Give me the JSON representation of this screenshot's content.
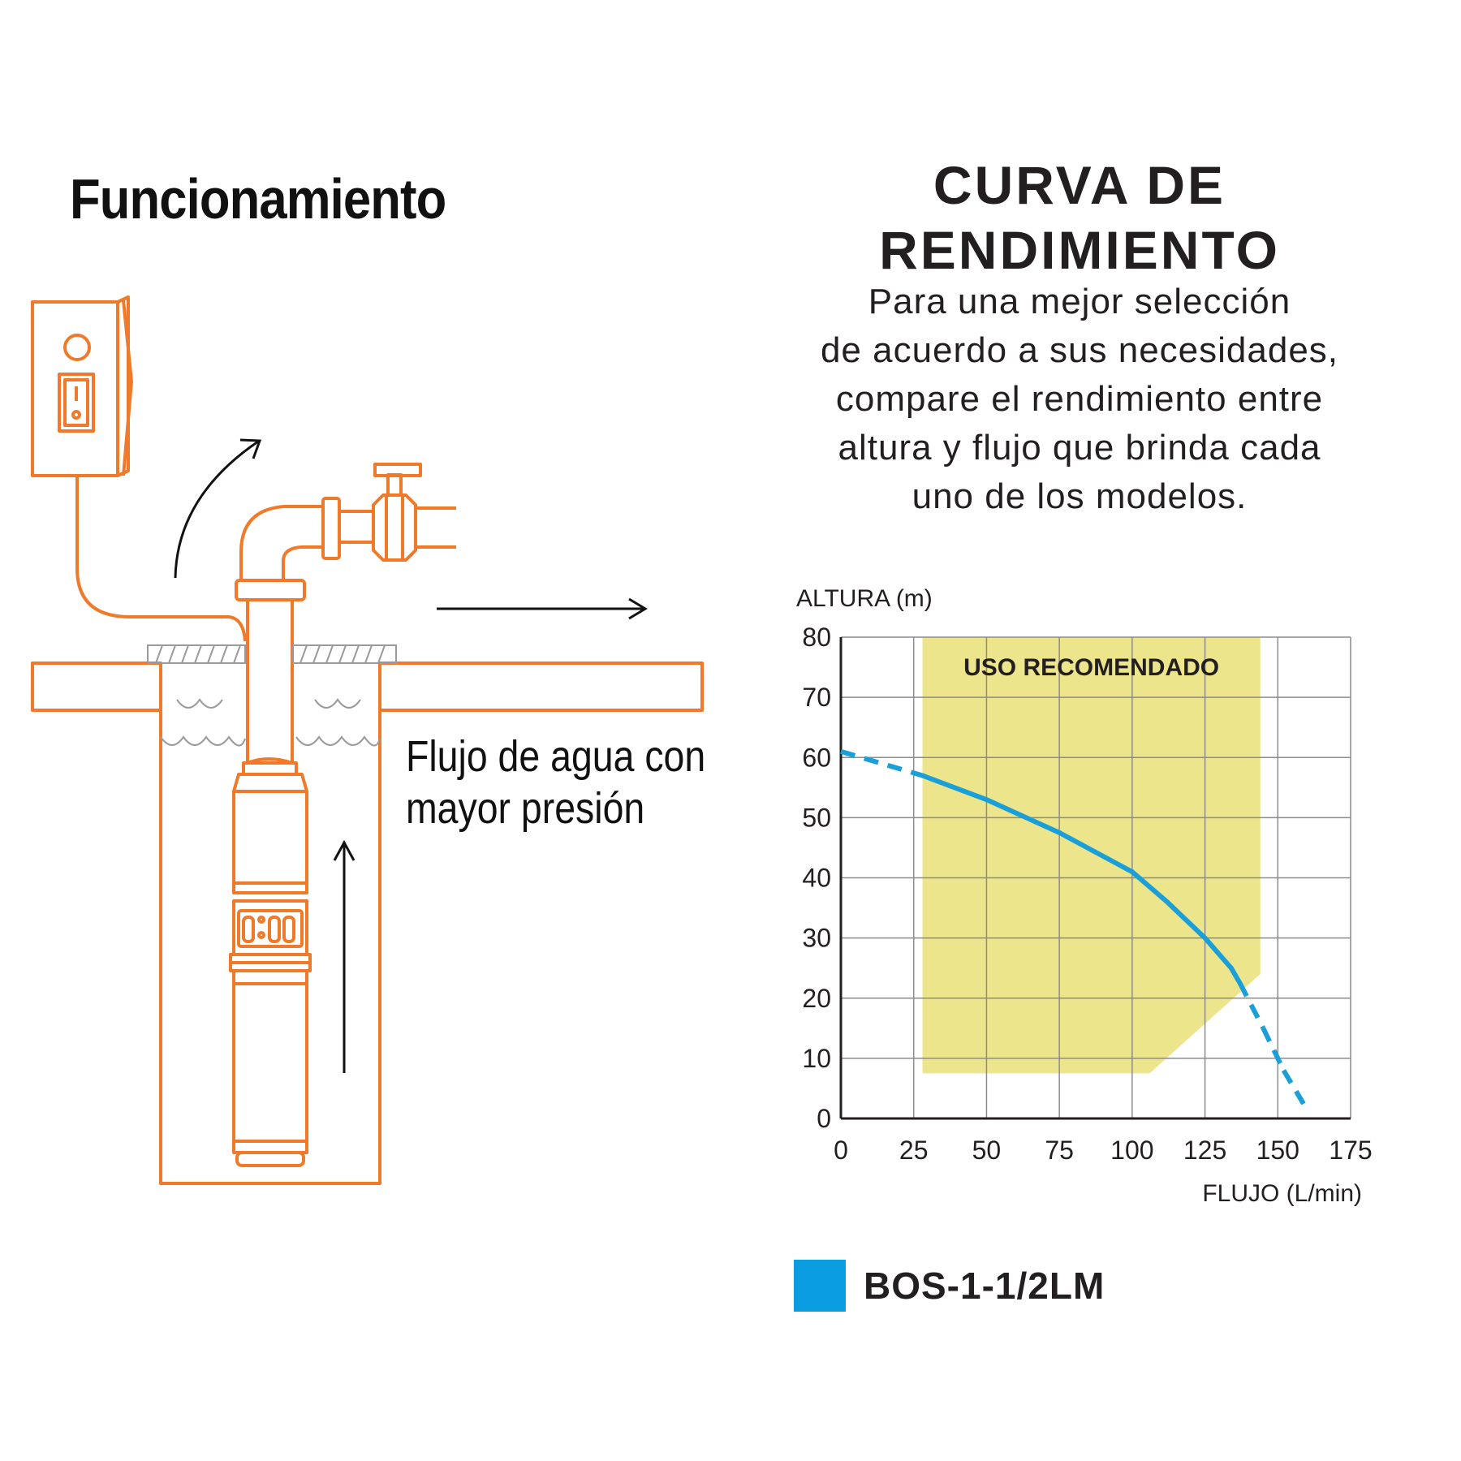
{
  "left": {
    "title": "Funcionamiento",
    "flow_caption": [
      "Flujo de agua con",
      "mayor presión"
    ]
  },
  "right": {
    "title_lines": [
      "CURVA DE",
      "RENDIMIENTO"
    ],
    "subtitle_lines": [
      "Para una mejor selección",
      "de acuerdo a sus necesidades,",
      "compare el rendimiento entre",
      "altura y flujo que brinda cada",
      "uno de los modelos."
    ]
  },
  "colors": {
    "illustration_orange": "#f07a2a",
    "curve_blue": "#1a9fd8",
    "legend_blue": "#0a9de0",
    "zone_yellow": "#ede58c",
    "grid": "#8c8c8c"
  },
  "chart_data": {
    "type": "line",
    "ylabel": "ALTURA (m)",
    "xlabel": "FLUJO (L/min)",
    "xlim": [
      0,
      175
    ],
    "ylim": [
      0,
      80
    ],
    "x_ticks": [
      0,
      25,
      50,
      75,
      100,
      125,
      150,
      175
    ],
    "y_ticks": [
      0,
      10,
      20,
      30,
      40,
      50,
      60,
      70,
      80
    ],
    "grid": true,
    "recommended_zone": {
      "label": "USO RECOMENDADO",
      "polygon": [
        [
          28,
          80
        ],
        [
          144,
          80
        ],
        [
          144,
          24
        ],
        [
          106,
          7.5
        ],
        [
          28,
          7.5
        ]
      ]
    },
    "series": [
      {
        "name": "BOS-1-1/2LM",
        "points": [
          [
            0,
            61
          ],
          [
            28,
            57
          ],
          [
            50,
            53
          ],
          [
            75,
            47.5
          ],
          [
            100,
            41
          ],
          [
            112,
            36
          ],
          [
            125,
            30
          ],
          [
            134,
            25
          ],
          [
            137,
            22.5
          ],
          [
            145,
            15
          ],
          [
            152,
            8
          ],
          [
            160,
            1.5
          ]
        ],
        "dashed_x_ranges": [
          [
            0,
            28
          ],
          [
            137,
            160
          ]
        ]
      }
    ]
  },
  "legend": {
    "label": "BOS-1-1/2LM"
  }
}
